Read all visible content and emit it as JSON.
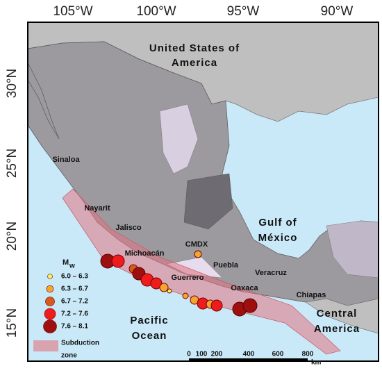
{
  "map": {
    "lon_labels": [
      "105°W",
      "100°W",
      "95°W",
      "90°W"
    ],
    "lat_labels": [
      "30°N",
      "25°N",
      "20°N",
      "15°N"
    ],
    "countries": [
      "United States of",
      "America",
      "Gulf of",
      "México",
      "Pacific",
      "Ocean",
      "Central",
      "America"
    ],
    "states": [
      "Sinaloa",
      "Nayarit",
      "Jalisco",
      "Michoacán",
      "CMDX",
      "Guerrero",
      "Puebla",
      "Veracruz",
      "Oaxaca",
      "Chiapas"
    ],
    "legend": {
      "title": "M",
      "title_sub": "w",
      "classes": [
        {
          "label": "6.0 – 6.3",
          "color": "#f5f25a"
        },
        {
          "label": "6.3 – 6.7",
          "color": "#f2a531"
        },
        {
          "label": "6.7 – 7.2",
          "color": "#d65a1c"
        },
        {
          "label": "7.2 – 7.6",
          "color": "#ee1c1c"
        },
        {
          "label": "7.6 – 8.1",
          "color": "#9e1010"
        }
      ],
      "zone_label": [
        "Subduction",
        "zone"
      ]
    },
    "scale": {
      "ticks": [
        "0",
        "100",
        "200",
        "400",
        "600",
        "800"
      ],
      "unit": "km"
    }
  }
}
